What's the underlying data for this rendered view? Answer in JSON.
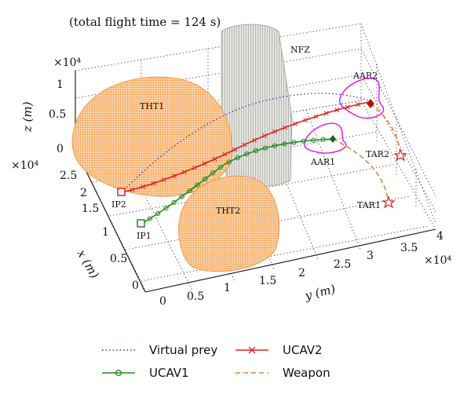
{
  "chart_data": {
    "type": "line",
    "title": "(total flight time = 124 s)",
    "axes": {
      "x": {
        "label": "x (m)",
        "exponent": "×10⁴",
        "ticks": [
          "0",
          "0.5",
          "1",
          "1.5",
          "2",
          "2.5"
        ]
      },
      "y": {
        "label": "y (m)",
        "exponent": "×10⁴",
        "ticks": [
          "0",
          "0.5",
          "1",
          "1.5",
          "2",
          "2.5",
          "3",
          "3.5",
          "4"
        ]
      },
      "z": {
        "label": "z (m)",
        "exponent": "×10⁴",
        "ticks": [
          "0",
          "0.5",
          "1"
        ]
      }
    },
    "regions": {
      "tht1": "THT1",
      "tht2": "THT2",
      "nfz": "NFZ",
      "aar1": "AAR1",
      "aar2": "AAR2"
    },
    "points": {
      "ip1": "IP1",
      "ip2": "IP2",
      "tar1": "TAR1",
      "tar2": "TAR2"
    },
    "series": [
      {
        "name": "Virtual prey",
        "color": "#3333cc",
        "style": "dotted"
      },
      {
        "name": "UCAV1",
        "color": "#1f8a1f",
        "style": "solid-circle"
      },
      {
        "name": "UCAV2",
        "color": "#dd2222",
        "style": "solid-x"
      },
      {
        "name": "Weapon",
        "color": "#e8822a",
        "style": "dashed"
      }
    ],
    "colors": {
      "threat": "#f7a85a",
      "nfz": "#c8c8c4",
      "aar": "#e020e0"
    }
  }
}
